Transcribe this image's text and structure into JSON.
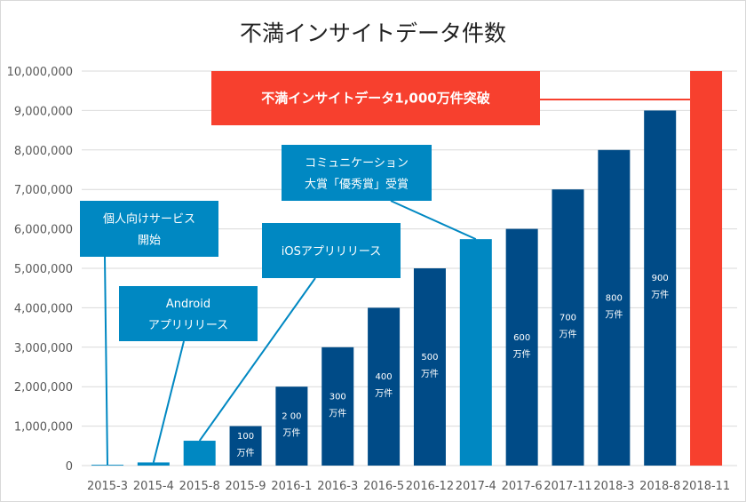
{
  "chart_data": {
    "type": "bar",
    "title": "不満インサイトデータ件数",
    "categories": [
      "2015-3",
      "2015-4",
      "2015-8",
      "2015-9",
      "2016-1",
      "2016-3",
      "2016-5",
      "2016-12",
      "2017-4",
      "2017-6",
      "2017-11",
      "2018-3",
      "2018-8",
      "2018-11"
    ],
    "values": [
      20000,
      80000,
      630000,
      1000000,
      2000000,
      3000000,
      4000000,
      5000000,
      5740000,
      6000000,
      7000000,
      8000000,
      9000000,
      10000000
    ],
    "bar_colors": [
      "#0088c2",
      "#0088c2",
      "#0088c2",
      "#004b87",
      "#004b87",
      "#004b87",
      "#004b87",
      "#004b87",
      "#0088c2",
      "#004b87",
      "#004b87",
      "#004b87",
      "#004b87",
      "#f7402e"
    ],
    "data_labels": [
      "",
      "",
      "",
      "100\n万件",
      "2 00\n万件",
      "300\n万件",
      "400\n万件",
      "500\n万件",
      "",
      "600\n万件",
      "700\n万件",
      "800\n万件",
      "900\n万件",
      ""
    ],
    "ylim": [
      0,
      10000000
    ],
    "yticks": [
      "0",
      "1,000,000",
      "2,000,000",
      "3,000,000",
      "4,000,000",
      "5,000,000",
      "6,000,000",
      "7,000,000",
      "8,000,000",
      "9,000,000",
      "10,000,000"
    ],
    "grid": true,
    "annotations": [
      {
        "text": "個人向けサービス\n開始",
        "target": "2015-3",
        "color": "#0088c2"
      },
      {
        "text": "Android\nアプリリリース",
        "target": "2015-4",
        "color": "#0088c2"
      },
      {
        "text": "iOSアプリリリース",
        "target": "2015-8",
        "color": "#0088c2"
      },
      {
        "text": "コミュニケーション\n大賞「優秀賞」受賞",
        "target": "2017-4",
        "color": "#0088c2"
      },
      {
        "text": "不満インサイトデータ1,000万件突破",
        "target": "2018-11",
        "color": "#f7402e"
      }
    ]
  }
}
